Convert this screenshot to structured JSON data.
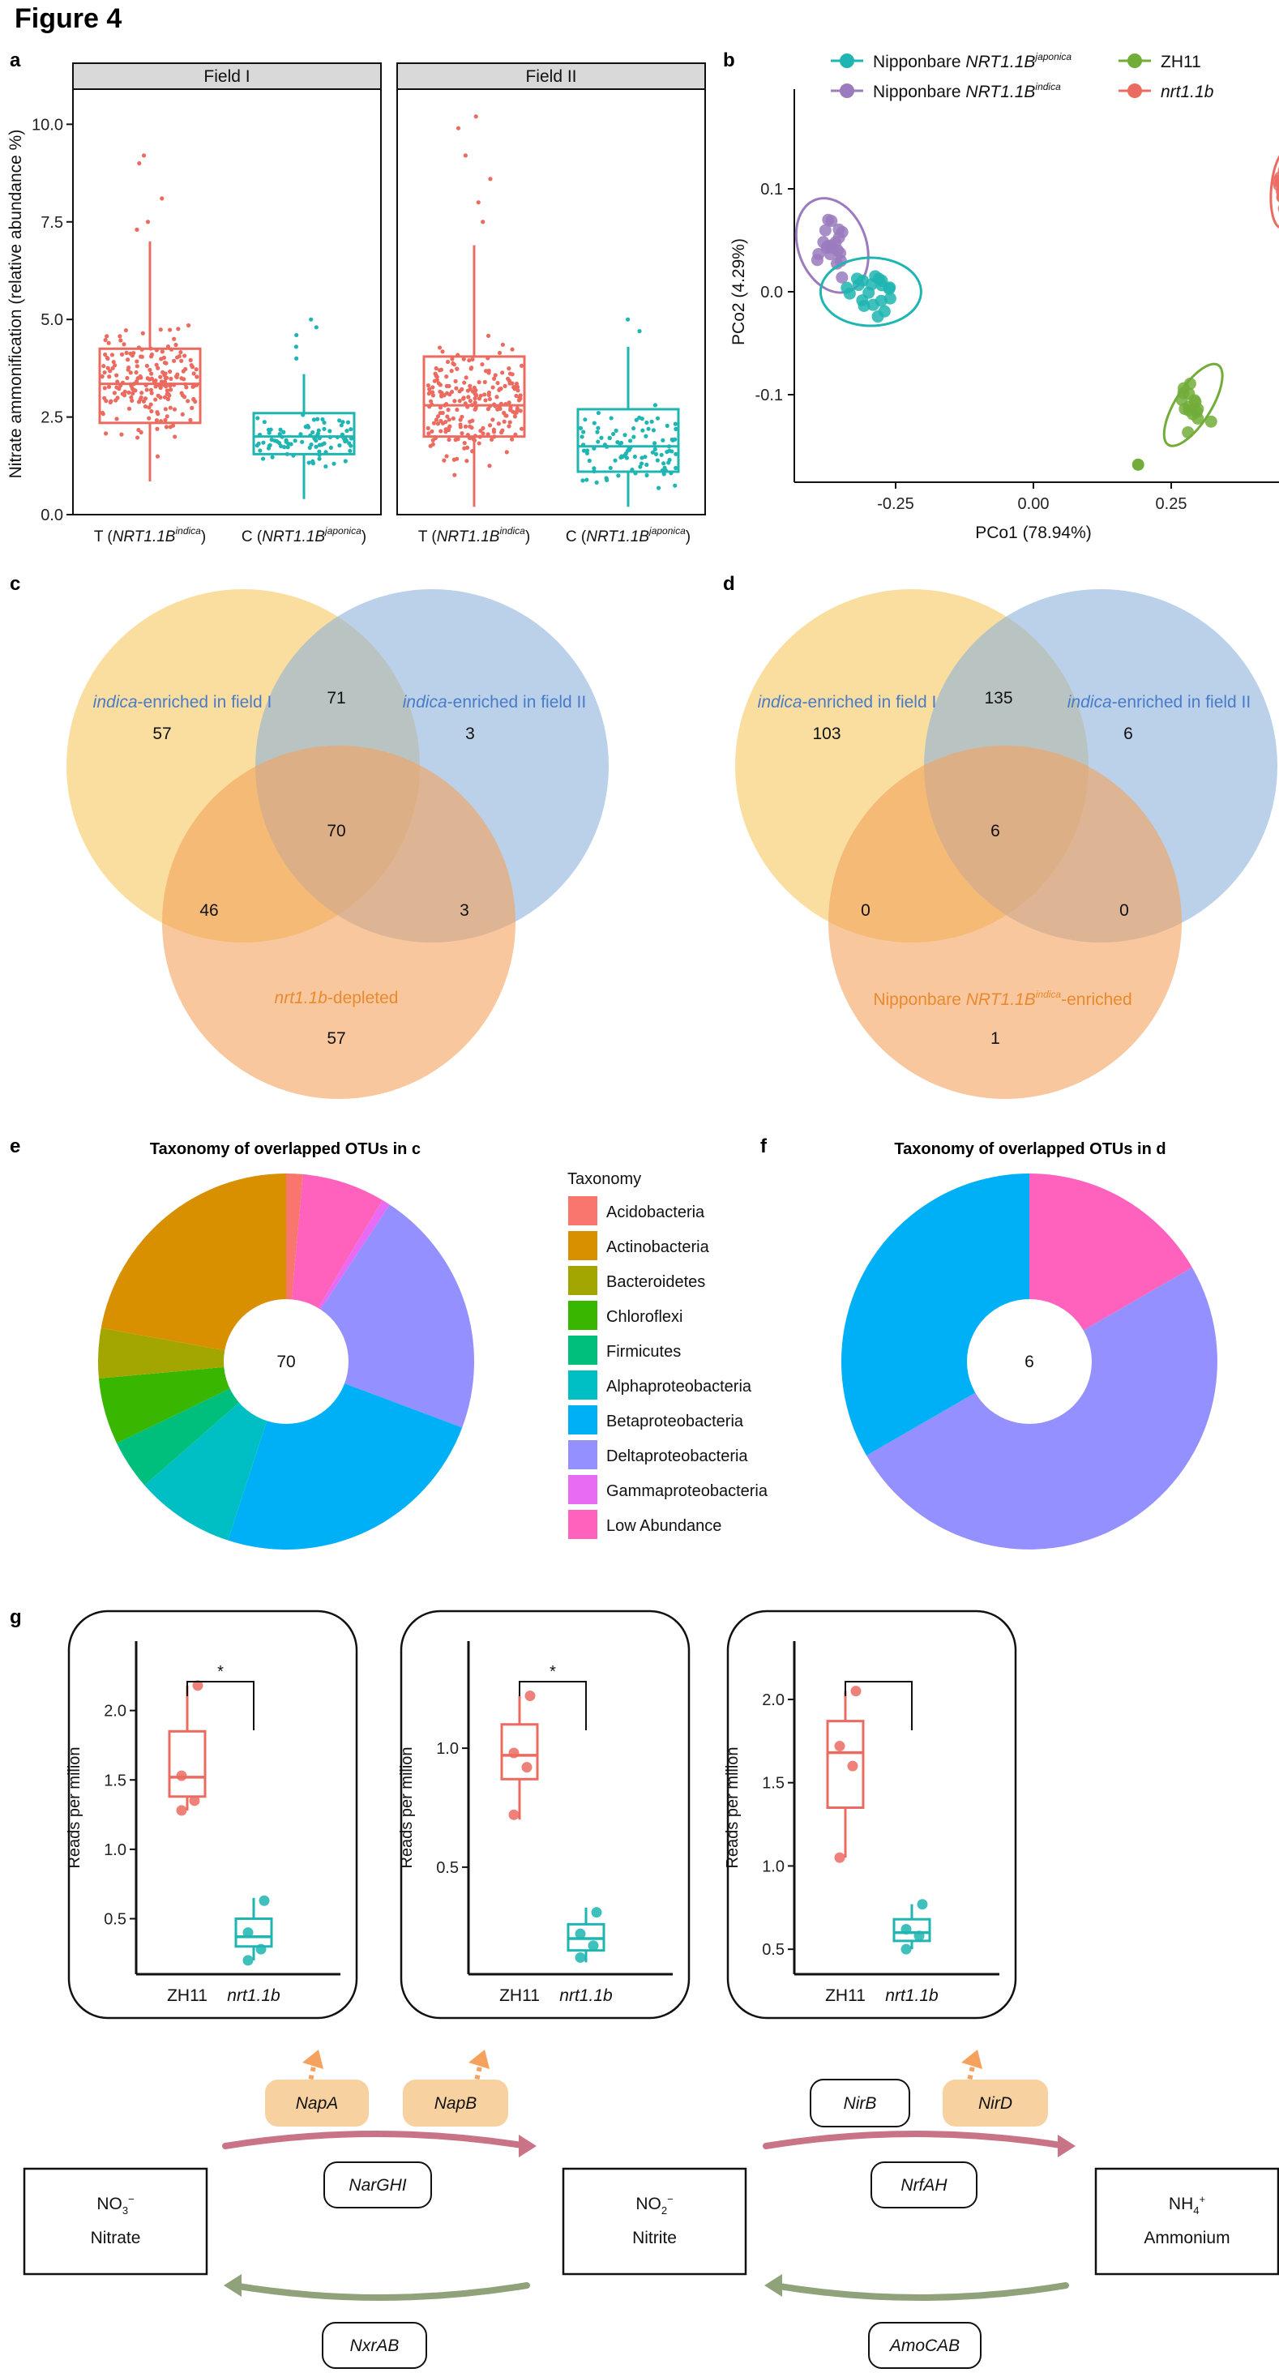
{
  "figure_title": "Figure 4",
  "panel_labels": [
    "a",
    "b",
    "c",
    "d",
    "e",
    "f",
    "g"
  ],
  "colors": {
    "red": "#EB6B61",
    "teal": "#1FB5B2",
    "green": "#72AD3A",
    "purple": "#9A7BBE",
    "yellow": "#F8CC6C",
    "blue": "#8EB3DB",
    "orange": "#F4A25D",
    "pink": "#C97486",
    "sage": "#8FA27A",
    "box_fill": "#F8D1A0"
  },
  "panel_a": {
    "ylabel": "Nitrate ammonification (relative abundance %)",
    "facets": [
      "Field I",
      "Field II"
    ],
    "yticks": [
      "0.0",
      "2.5",
      "5.0",
      "7.5",
      "10.0"
    ],
    "xlabels": [
      {
        "pre": "T (",
        "gene": "NRT1.1B",
        "sup": "indica",
        "post": ")"
      },
      {
        "pre": "C (",
        "gene": "NRT1.1B",
        "sup": "japonica",
        "post": ")"
      }
    ]
  },
  "panel_b": {
    "xlabel": "PCo1 (78.94%)",
    "ylabel": "PCo2 (4.29%)",
    "xticks": [
      "-0.25",
      "0.00",
      "0.25"
    ],
    "yticks": [
      "0.1",
      "0.0",
      "-0.1"
    ],
    "legend": [
      {
        "pre": "Nipponbare ",
        "gene": "NRT1.1B",
        "sup": "japonica",
        "color": "#1FB5B2"
      },
      {
        "pre": "Nipponbare ",
        "gene": "NRT1.1B",
        "sup": "indica",
        "color": "#9A7BBE"
      },
      {
        "pre": "ZH11",
        "gene": "",
        "sup": "",
        "color": "#72AD3A"
      },
      {
        "pre": "",
        "gene": "nrt1.1b",
        "sup": "",
        "color": "#EB6B61"
      }
    ]
  },
  "venn_c": {
    "set_labels": [
      {
        "it": "indica",
        "rest": "-enriched in field I"
      },
      {
        "it": "indica",
        "rest": "-enriched in field II"
      },
      {
        "it": "nrt1.1b",
        "rest": "-depleted"
      }
    ],
    "counts": [
      "57",
      "71",
      "3",
      "70",
      "46",
      "3",
      "57"
    ]
  },
  "venn_d": {
    "set_labels": [
      {
        "it": "indica",
        "rest": "-enriched in field I"
      },
      {
        "it": "indica",
        "rest": "-enriched in field II"
      },
      {
        "pre": "Nipponbare ",
        "it": "NRT1.1B",
        "sup": "indica",
        "rest": "-enriched"
      }
    ],
    "counts": [
      "103",
      "135",
      "6",
      "6",
      "0",
      "0",
      "1"
    ]
  },
  "taxonomy_legend": {
    "title": "Taxonomy",
    "items": [
      {
        "name": "Acidobacteria",
        "color": "#F8766D"
      },
      {
        "name": "Actinobacteria",
        "color": "#D89000"
      },
      {
        "name": "Bacteroidetes",
        "color": "#A3A500"
      },
      {
        "name": "Chloroflexi",
        "color": "#39B600"
      },
      {
        "name": "Firmicutes",
        "color": "#00BF7D"
      },
      {
        "name": "Alphaproteobacteria",
        "color": "#00BFC4"
      },
      {
        "name": "Betaproteobacteria",
        "color": "#00B0F6"
      },
      {
        "name": "Deltaproteobacteria",
        "color": "#9590FF"
      },
      {
        "name": "Gammaproteobacteria",
        "color": "#E76BF3"
      },
      {
        "name": "Low Abundance",
        "color": "#FF62BC"
      }
    ]
  },
  "chart_data": [
    {
      "panel": "e",
      "type": "pie",
      "title": "Taxonomy of overlapped OTUs in c",
      "center_label": "70",
      "slices": [
        {
          "name": "Acidobacteria",
          "value": 1
        },
        {
          "name": "Low Abundance",
          "value": 5
        },
        {
          "name": "Gammaproteobacteria",
          "value": 0.5
        },
        {
          "name": "Deltaproteobacteria",
          "value": 15
        },
        {
          "name": "Betaproteobacteria",
          "value": 17
        },
        {
          "name": "Alphaproteobacteria",
          "value": 6
        },
        {
          "name": "Firmicutes",
          "value": 3
        },
        {
          "name": "Chloroflexi",
          "value": 4
        },
        {
          "name": "Bacteroidetes",
          "value": 3
        },
        {
          "name": "Actinobacteria",
          "value": 15.5
        }
      ]
    },
    {
      "panel": "f",
      "type": "pie",
      "title": "Taxonomy of overlapped OTUs in d",
      "center_label": "6",
      "slices": [
        {
          "name": "Low Abundance",
          "value": 1
        },
        {
          "name": "Deltaproteobacteria",
          "value": 3
        },
        {
          "name": "Betaproteobacteria",
          "value": 2
        }
      ]
    },
    {
      "panel": "g",
      "type": "box",
      "gene": "NapA",
      "ylabel": "Reads per milion",
      "ylim": [
        0.1,
        2.5
      ],
      "yticks": [
        "0.5",
        "1.0",
        "1.5",
        "2.0"
      ],
      "signif": "*",
      "groups": [
        {
          "name": "ZH11",
          "color": "#EB6B61",
          "min": 1.28,
          "q1": 1.38,
          "median": 1.52,
          "q3": 1.85,
          "max": 2.18,
          "points": [
            1.28,
            1.35,
            1.53,
            2.18
          ]
        },
        {
          "name": "nrt1.1b",
          "color": "#1FB5B2",
          "min": 0.2,
          "q1": 0.3,
          "median": 0.37,
          "q3": 0.5,
          "max": 0.65,
          "points": [
            0.2,
            0.28,
            0.4,
            0.63
          ]
        }
      ]
    },
    {
      "panel": "g",
      "type": "box",
      "gene": "NapB",
      "ylabel": "Reads per milion",
      "ylim": [
        0.05,
        1.45
      ],
      "yticks": [
        "0.5",
        "1.0"
      ],
      "signif": "*",
      "groups": [
        {
          "name": "ZH11",
          "color": "#EB6B61",
          "min": 0.7,
          "q1": 0.87,
          "median": 0.97,
          "q3": 1.1,
          "max": 1.22,
          "points": [
            0.72,
            0.92,
            0.98,
            1.22
          ]
        },
        {
          "name": "nrt1.1b",
          "color": "#1FB5B2",
          "min": 0.1,
          "q1": 0.15,
          "median": 0.2,
          "q3": 0.26,
          "max": 0.33,
          "points": [
            0.12,
            0.17,
            0.22,
            0.31
          ]
        }
      ]
    },
    {
      "panel": "g",
      "type": "box",
      "gene": "NirD",
      "ylabel": "Reads per milion",
      "ylim": [
        0.35,
        2.35
      ],
      "yticks": [
        "0.5",
        "1.0",
        "1.5",
        "2.0"
      ],
      "signif": "",
      "groups": [
        {
          "name": "ZH11",
          "color": "#EB6B61",
          "min": 1.05,
          "q1": 1.35,
          "median": 1.68,
          "q3": 1.87,
          "max": 2.05,
          "points": [
            1.05,
            1.6,
            1.72,
            2.05
          ]
        },
        {
          "name": "nrt1.1b",
          "color": "#1FB5B2",
          "min": 0.5,
          "q1": 0.55,
          "median": 0.6,
          "q3": 0.68,
          "max": 0.77,
          "points": [
            0.5,
            0.58,
            0.62,
            0.77
          ]
        }
      ]
    }
  ],
  "pathway": {
    "nodes": [
      {
        "formula": "NO",
        "sub": "3",
        "sup": "−",
        "name": "Nitrate"
      },
      {
        "formula": "NO",
        "sub": "2",
        "sup": "−",
        "name": "Nitrite"
      },
      {
        "formula": "NH",
        "sub": "4",
        "sup": "+",
        "name": "Ammonium"
      }
    ],
    "genes_forward": [
      "NarGHI",
      "NrfAH"
    ],
    "genes_reverse": [
      "NxrAB",
      "AmoCAB"
    ],
    "highlighted": [
      "NapA",
      "NapB",
      "NirD"
    ],
    "other_genes": [
      "NirB"
    ]
  }
}
